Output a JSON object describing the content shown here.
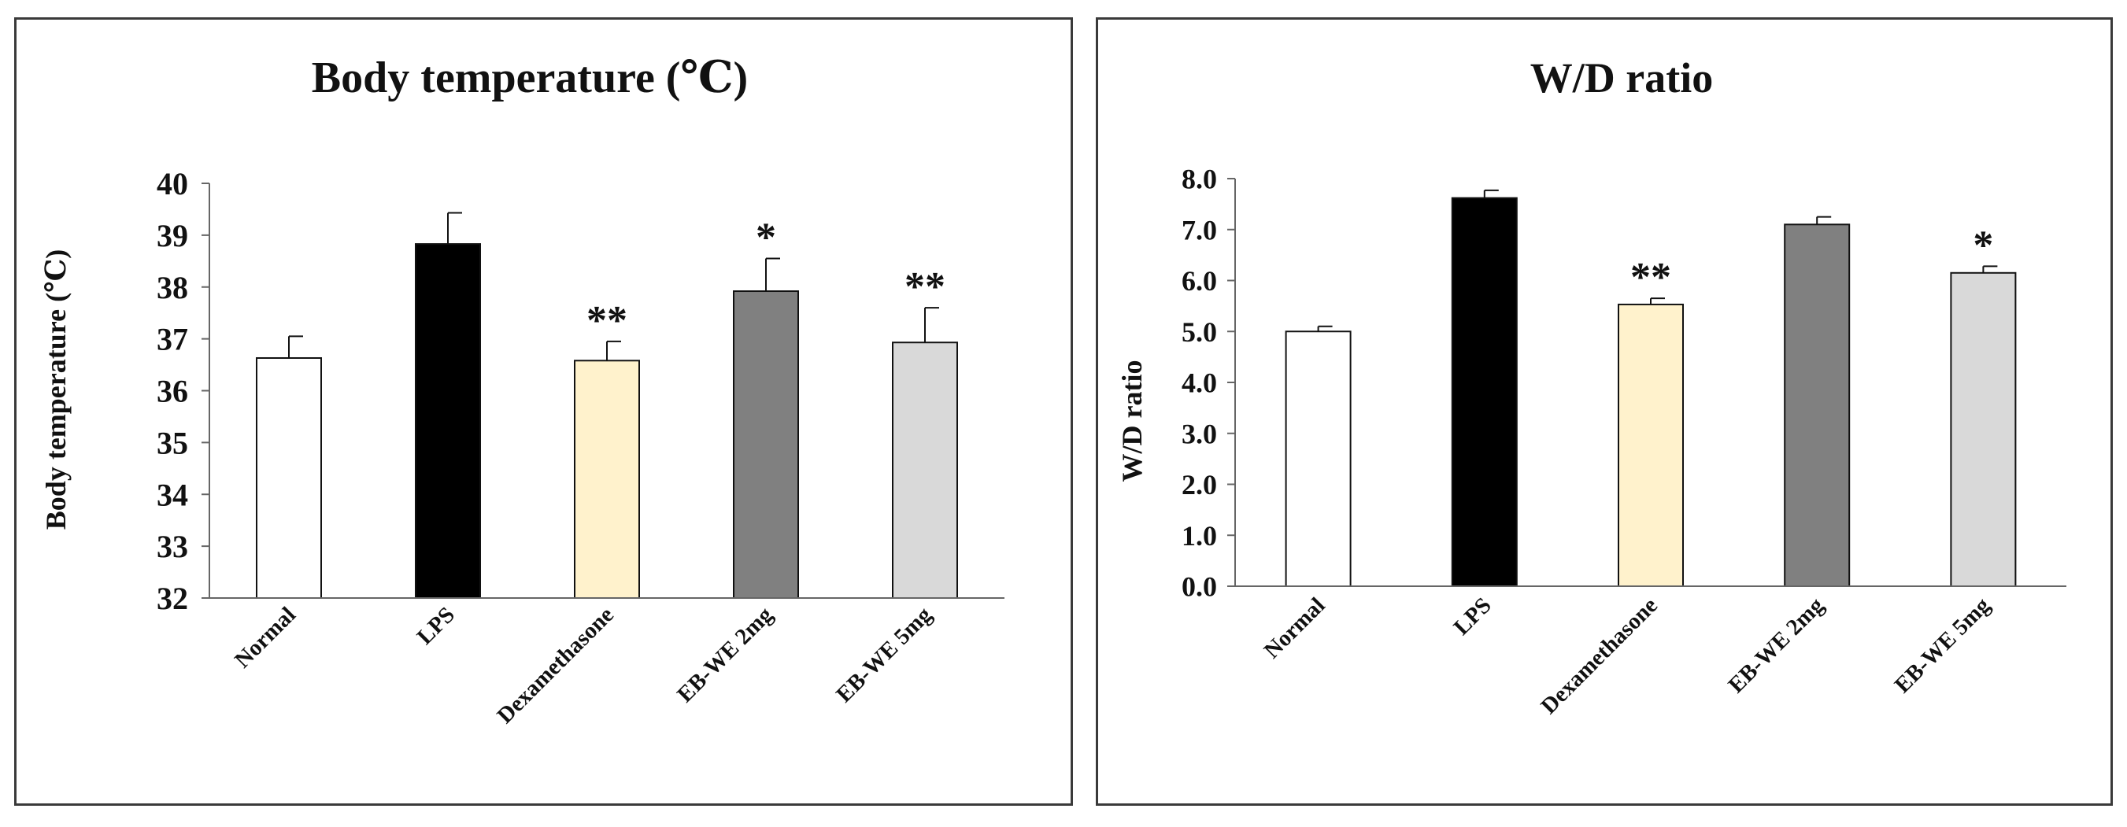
{
  "chart_data": [
    {
      "type": "bar",
      "title": "Body temperature (℃)",
      "xlabel": "",
      "ylabel": "Body temperature (℃)",
      "categories": [
        "Normal",
        "LPS",
        "Dexamethasone",
        "EB-WE 2mg",
        "EB-WE 5mg"
      ],
      "values": [
        36.63,
        38.83,
        36.58,
        37.92,
        36.93
      ],
      "errors": [
        0.42,
        0.6,
        0.37,
        0.63,
        0.67
      ],
      "significance": [
        "",
        "",
        "**",
        "*",
        "**"
      ],
      "colors": [
        "#ffffff",
        "#000000",
        "#fff2cc",
        "#808080",
        "#d9d9d9"
      ],
      "ylim": [
        32,
        40
      ],
      "yticks": [
        32,
        33,
        34,
        35,
        36,
        37,
        38,
        39,
        40
      ],
      "ytick_labels": [
        "32",
        "33",
        "34",
        "35",
        "36",
        "37",
        "38",
        "39",
        "40"
      ],
      "grid": false
    },
    {
      "type": "bar",
      "title": "W/D ratio",
      "xlabel": "",
      "ylabel": "W/D ratio",
      "categories": [
        "Normal",
        "LPS",
        "Dexamethasone",
        "EB-WE 2mg",
        "EB-WE 5mg"
      ],
      "values": [
        5.0,
        7.62,
        5.53,
        7.1,
        6.15
      ],
      "errors": [
        0.1,
        0.15,
        0.12,
        0.15,
        0.13
      ],
      "significance": [
        "",
        "",
        "**",
        "",
        "*"
      ],
      "colors": [
        "#ffffff",
        "#000000",
        "#fff2cc",
        "#808080",
        "#d9d9d9"
      ],
      "ylim": [
        0,
        8
      ],
      "yticks": [
        0,
        1,
        2,
        3,
        4,
        5,
        6,
        7,
        8
      ],
      "ytick_labels": [
        "0.0",
        "1.0",
        "2.0",
        "3.0",
        "4.0",
        "5.0",
        "6.0",
        "7.0",
        "8.0"
      ],
      "grid": false
    }
  ]
}
